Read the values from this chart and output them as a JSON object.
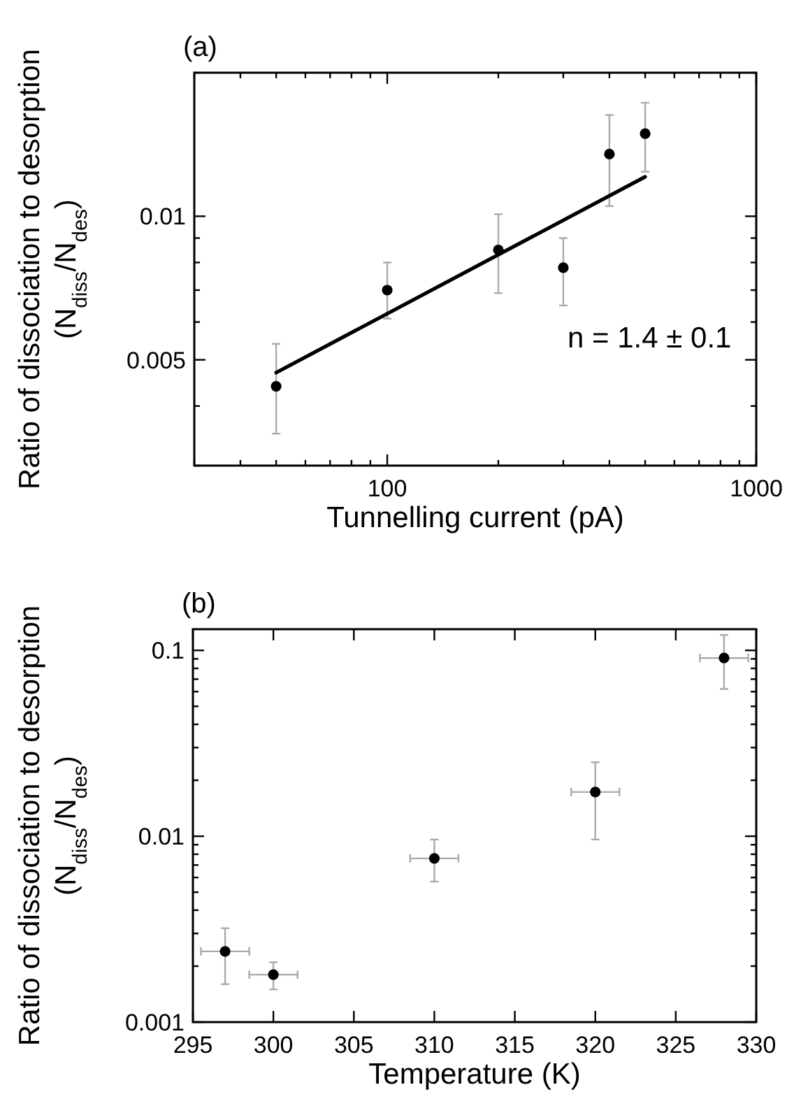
{
  "chart_data": [
    {
      "type": "scatter",
      "title": "(a)",
      "xlabel": "Tunnelling current (pA)",
      "ylabel": "Ratio of dissociation to desorption\n(N$_{diss}$/N$_{des}$)",
      "log": "xy",
      "grid": false,
      "xlim": [
        30,
        1000
      ],
      "ylim": [
        0.003,
        0.02
      ],
      "xticks": [
        {
          "value": 30,
          "label": null
        },
        {
          "value": 40,
          "label": null
        },
        {
          "value": 50,
          "label": null
        },
        {
          "value": 60,
          "label": null
        },
        {
          "value": 70,
          "label": null
        },
        {
          "value": 80,
          "label": null
        },
        {
          "value": 90,
          "label": null
        },
        100,
        {
          "value": 200,
          "label": null
        },
        {
          "value": 300,
          "label": null
        },
        {
          "value": 400,
          "label": null
        },
        {
          "value": 500,
          "label": null
        },
        {
          "value": 600,
          "label": null
        },
        {
          "value": 700,
          "label": null
        },
        {
          "value": 800,
          "label": null
        },
        {
          "value": 900,
          "label": null
        },
        1000
      ],
      "yticks": [
        {
          "value": 0.003,
          "label": null
        },
        {
          "value": 0.004,
          "label": null
        },
        0.005,
        {
          "value": 0.006,
          "label": null
        },
        {
          "value": 0.007,
          "label": null
        },
        {
          "value": 0.008,
          "label": null
        },
        {
          "value": 0.009,
          "label": null
        },
        0.01,
        {
          "value": 0.02,
          "label": null
        }
      ],
      "annotations": [
        "n = 1.4 ± 0.1"
      ],
      "series": [
        {
          "marker": "circle",
          "color": "#000000",
          "x": [
            50,
            100,
            200,
            300,
            400,
            500
          ],
          "values": [
            0.0044,
            0.007,
            0.0085,
            0.0078,
            0.0135,
            0.0149
          ],
          "errors": [
            [
              0.0035,
              0.0054
            ],
            [
              0.0061,
              0.008
            ],
            [
              0.0069,
              0.0101
            ],
            [
              0.0065,
              0.009
            ],
            [
              0.0105,
              0.0163
            ],
            [
              0.0124,
              0.0173
            ]
          ]
        },
        {
          "type": "line",
          "color": "#000000",
          "x": [
            50,
            500
          ],
          "values": [
            0.0047,
            0.0121
          ]
        }
      ]
    },
    {
      "type": "scatter",
      "title": "(b)",
      "xlabel": "Temperature (K)",
      "ylabel": "Ratio of dissociation to desorption\n(N$_{diss}$/N$_{des}$)",
      "log": "y",
      "grid": false,
      "xlim": [
        295,
        330
      ],
      "ylim": [
        0.001,
        0.13
      ],
      "xticks": [
        295,
        300,
        305,
        310,
        315,
        320,
        325,
        330
      ],
      "yticks": [
        0.001,
        {
          "value": 0.002,
          "label": null
        },
        {
          "value": 0.003,
          "label": null
        },
        {
          "value": 0.004,
          "label": null
        },
        {
          "value": 0.005,
          "label": null
        },
        {
          "value": 0.006,
          "label": null
        },
        {
          "value": 0.007,
          "label": null
        },
        {
          "value": 0.008,
          "label": null
        },
        {
          "value": 0.009,
          "label": null
        },
        0.01,
        {
          "value": 0.02,
          "label": null
        },
        {
          "value": 0.03,
          "label": null
        },
        {
          "value": 0.04,
          "label": null
        },
        {
          "value": 0.05,
          "label": null
        },
        {
          "value": 0.06,
          "label": null
        },
        {
          "value": 0.07,
          "label": null
        },
        {
          "value": 0.08,
          "label": null
        },
        {
          "value": 0.09,
          "label": null
        },
        0.1
      ],
      "series": [
        {
          "marker": "circle",
          "color": "#000000",
          "x": [
            297,
            300,
            310,
            320,
            328
          ],
          "values": [
            0.0024,
            0.0018,
            0.0076,
            0.0173,
            0.091
          ],
          "errors": [
            [
              0.0016,
              0.0032
            ],
            [
              0.0015,
              0.0021
            ],
            [
              0.0057,
              0.0096
            ],
            [
              0.0096,
              0.025
            ],
            [
              0.062,
              0.121
            ]
          ],
          "xerrors": [
            1.5,
            1.5,
            1.5,
            1.5,
            1.5
          ]
        }
      ]
    }
  ]
}
